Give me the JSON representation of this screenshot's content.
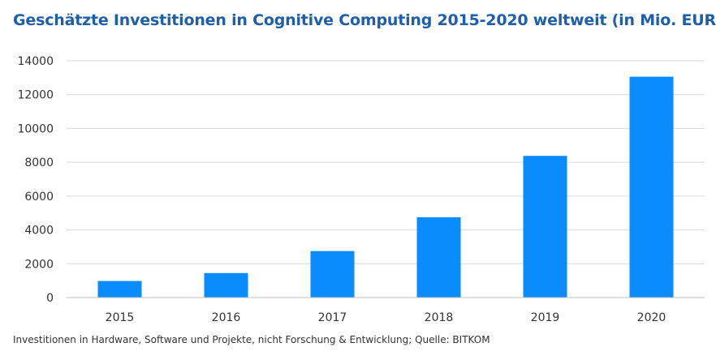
{
  "colors": {
    "title": "#1f5ea8",
    "bar": "#0a8cff",
    "grid": "#d9d9d9",
    "axis": "#bfbfbf",
    "text": "#333333"
  },
  "chart_data": {
    "type": "bar",
    "title": "Geschätzte Investitionen in Cognitive Computing 2015-2020 weltweit  (in Mio. EUR)",
    "footnote": "Investitionen in Hardware, Software und Projekte, nicht Forschung & Entwicklung; Quelle: BITKOM",
    "categories": [
      "2015",
      "2016",
      "2017",
      "2018",
      "2019",
      "2020"
    ],
    "values": [
      980,
      1450,
      2750,
      4750,
      8380,
      13060
    ],
    "ylim": [
      0,
      14000
    ],
    "yticks": [
      0,
      2000,
      4000,
      6000,
      8000,
      10000,
      12000,
      14000
    ],
    "grid": true,
    "legend": "none"
  }
}
